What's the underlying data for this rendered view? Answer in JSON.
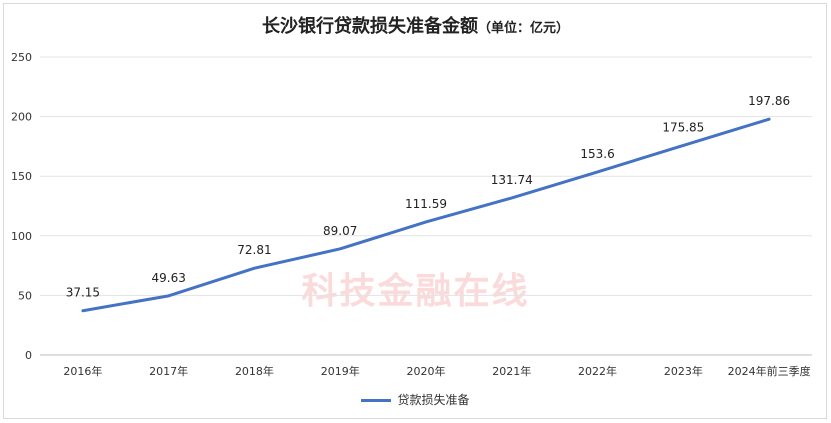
{
  "chart_data": {
    "type": "line",
    "title": "长沙银行贷款损失准备金额",
    "subtitle": "（单位：亿元）",
    "categories": [
      "2016年",
      "2017年",
      "2018年",
      "2019年",
      "2020年",
      "2021年",
      "2022年",
      "2023年",
      "2024年前三季度"
    ],
    "series": [
      {
        "name": "贷款损失准备",
        "values": [
          37.15,
          49.63,
          72.81,
          89.07,
          111.59,
          131.74,
          153.6,
          175.85,
          197.86
        ],
        "labels": [
          "37.15",
          "49.63",
          "72.81",
          "89.07",
          "111.59",
          "131.74",
          "153.6",
          "175.85",
          "197.86"
        ],
        "color": "#4472C4"
      }
    ],
    "ylim": [
      0,
      250
    ],
    "yticks": [
      0,
      50,
      100,
      150,
      200,
      250
    ],
    "grid": true,
    "legend_position": "bottom"
  },
  "watermark": "科技金融在线"
}
